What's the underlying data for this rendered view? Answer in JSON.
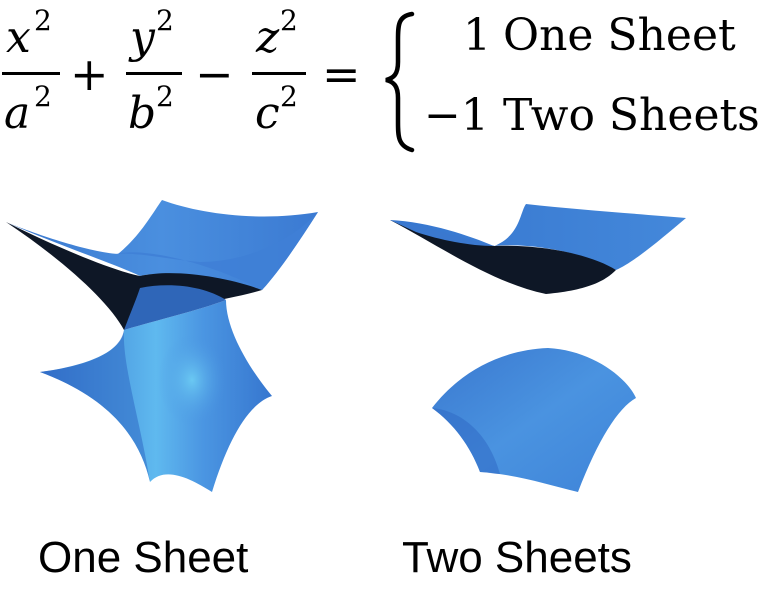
{
  "equation": {
    "term1": {
      "num_var": "x",
      "num_exp": "2",
      "den_var": "a",
      "den_exp": "2"
    },
    "op1": "+",
    "term2": {
      "num_var": "y",
      "num_exp": "2",
      "den_var": "b",
      "den_exp": "2"
    },
    "op2": "−",
    "term3": {
      "num_var": "z",
      "num_exp": "2",
      "den_var": "c",
      "den_exp": "2"
    },
    "equals": "=",
    "cases": [
      {
        "value": "1",
        "label": "One Sheet"
      },
      {
        "value": "−1",
        "label": "Two Sheets"
      }
    ]
  },
  "figures": [
    {
      "caption": "One Sheet"
    },
    {
      "caption": "Two Sheets"
    }
  ],
  "colors": {
    "surface_outer": "#3f7fd6",
    "surface_light": "#5aa7ea",
    "surface_highlight": "#63c6f2",
    "surface_interior": "#0e1726",
    "surface_edge": "#2c63b3"
  }
}
